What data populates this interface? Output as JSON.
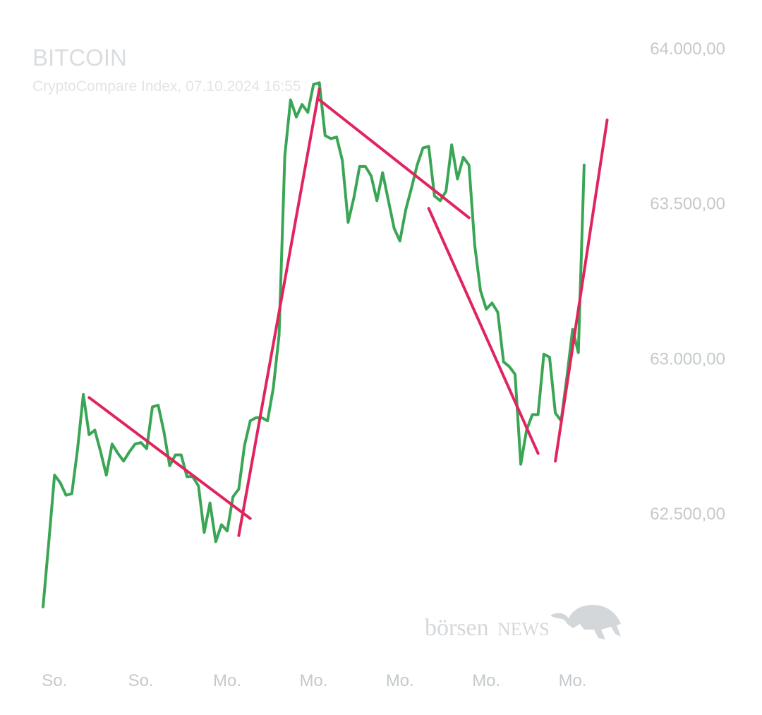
{
  "chart_data": {
    "type": "line",
    "title": "BITCOIN",
    "subtitle": "CryptoCompare Index, 07.10.2024 16:55",
    "y_ticks": [
      "64.000,00",
      "63.500,00",
      "63.000,00",
      "62.500,00"
    ],
    "y_tick_values": [
      64000,
      63500,
      63000,
      62500
    ],
    "ylim": [
      62150,
      64100
    ],
    "x_ticks": [
      "So.",
      "So.",
      "Mo.",
      "Mo.",
      "Mo.",
      "Mo.",
      "Mo."
    ],
    "x_tick_positions": [
      2,
      17,
      32,
      47,
      62,
      77,
      92
    ],
    "xlim": [
      0,
      101
    ],
    "grid": false,
    "colors": {
      "series": "#3aa655",
      "trend": "#e0245e",
      "text": "#c5c9cc",
      "title": "#dadddf"
    },
    "series": [
      {
        "values": [
          62200,
          62410,
          62625,
          62600,
          62560,
          62565,
          62710,
          62885,
          62755,
          62770,
          62700,
          62625,
          62725,
          62695,
          62670,
          62700,
          62725,
          62730,
          62710,
          62845,
          62850,
          62765,
          62655,
          62690,
          62690,
          62620,
          62620,
          62590,
          62440,
          62535,
          62410,
          62465,
          62445,
          62555,
          62580,
          62720,
          62800,
          62810,
          62810,
          62800,
          62905,
          63075,
          63655,
          63835,
          63780,
          63820,
          63795,
          63885,
          63890,
          63720,
          63710,
          63715,
          63640,
          63440,
          63520,
          63620,
          63620,
          63590,
          63510,
          63600,
          63510,
          63420,
          63380,
          63480,
          63550,
          63625,
          63680,
          63685,
          63525,
          63510,
          63540,
          63690,
          63580,
          63650,
          63625,
          63365,
          63220,
          63160,
          63180,
          63150,
          62990,
          62975,
          62950,
          62660,
          62770,
          62820,
          62820,
          63015,
          63005,
          62825,
          62800,
          62940,
          63095,
          63020,
          63625
        ]
      }
    ],
    "trendlines": [
      {
        "x1": 8,
        "y1": 62875,
        "x2": 36,
        "y2": 62485
      },
      {
        "x1": 34,
        "y1": 62430,
        "x2": 48,
        "y2": 63870
      },
      {
        "x1": 48,
        "y1": 63835,
        "x2": 74,
        "y2": 63455
      },
      {
        "x1": 67,
        "y1": 63485,
        "x2": 86,
        "y2": 62695
      },
      {
        "x1": 89,
        "y1": 62670,
        "x2": 98,
        "y2": 63770
      }
    ]
  },
  "watermark": {
    "brand_lower": "börsen",
    "brand_upper": "NEWS",
    "icon": "bull-icon"
  }
}
